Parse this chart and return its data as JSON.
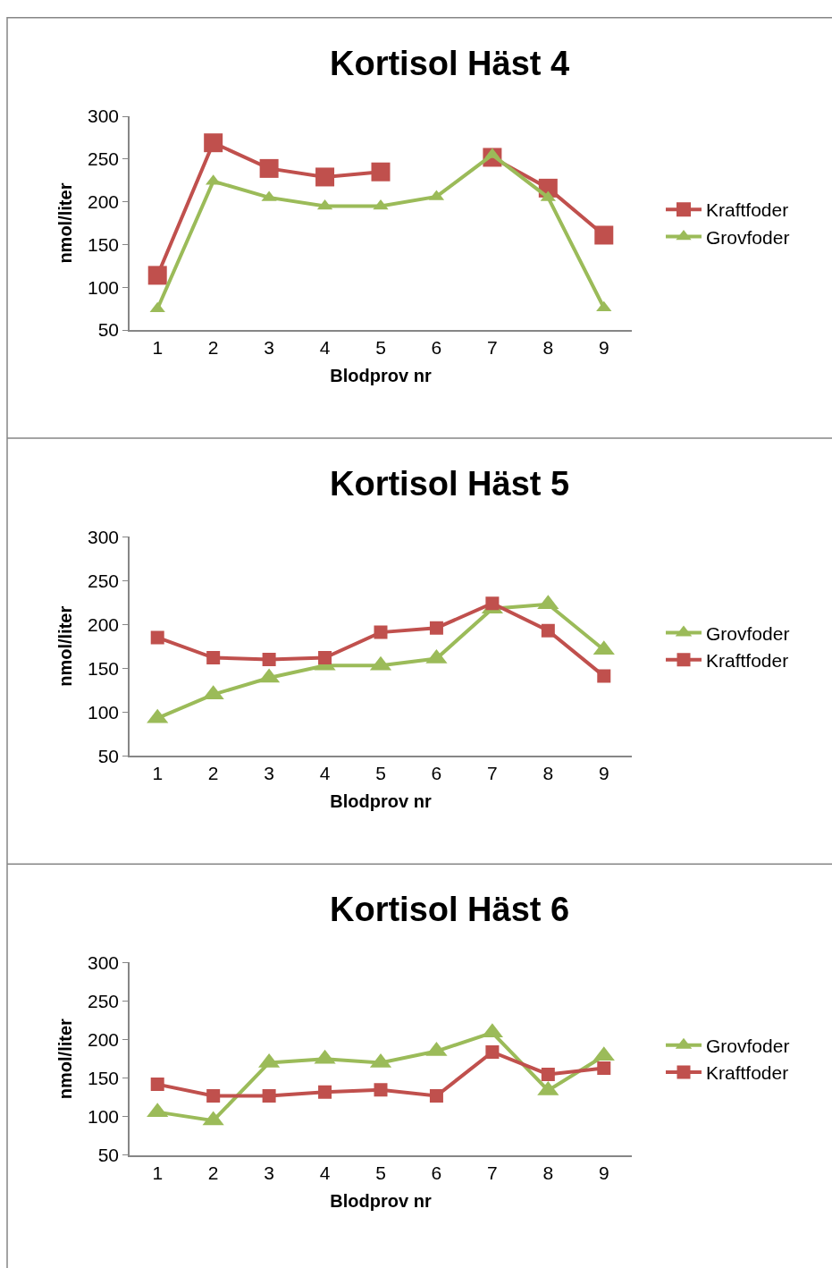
{
  "chart_data": [
    {
      "type": "line",
      "title": "Kortisol Häst 4",
      "xlabel": "Blodprov nr",
      "ylabel": "nmol/liter",
      "categories": [
        "1",
        "2",
        "3",
        "4",
        "5",
        "6",
        "7",
        "8",
        "9"
      ],
      "ylim": [
        50,
        300
      ],
      "yticks": [
        50,
        100,
        150,
        200,
        250,
        300
      ],
      "grid": false,
      "legend": "right",
      "series": [
        {
          "name": "Kraftfoder",
          "color": "#c0504d",
          "marker": "square",
          "values": [
            114,
            269,
            239,
            229,
            235,
            null,
            252,
            216,
            161
          ]
        },
        {
          "name": "Grovfoder",
          "color": "#9bbb59",
          "marker": "triangle",
          "values": [
            75,
            224,
            205,
            195,
            195,
            206,
            255,
            205,
            76
          ]
        }
      ]
    },
    {
      "type": "line",
      "title": "Kortisol Häst 5",
      "xlabel": "Blodprov nr",
      "ylabel": "nmol/liter",
      "categories": [
        "1",
        "2",
        "3",
        "4",
        "5",
        "6",
        "7",
        "8",
        "9"
      ],
      "ylim": [
        50,
        300
      ],
      "yticks": [
        50,
        100,
        150,
        200,
        250,
        300
      ],
      "grid": false,
      "legend": "right",
      "series": [
        {
          "name": "Grovfoder",
          "color": "#9bbb59",
          "marker": "triangle",
          "values": [
            93,
            120,
            139,
            153,
            153,
            161,
            218,
            223,
            171
          ]
        },
        {
          "name": "Kraftfoder",
          "color": "#c0504d",
          "marker": "square",
          "values": [
            185,
            162,
            160,
            162,
            191,
            196,
            224,
            193,
            141
          ]
        }
      ]
    },
    {
      "type": "line",
      "title": "Kortisol Häst 6",
      "xlabel": "Blodprov nr",
      "ylabel": "nmol/liter",
      "categories": [
        "1",
        "2",
        "3",
        "4",
        "5",
        "6",
        "7",
        "8",
        "9"
      ],
      "ylim": [
        50,
        300
      ],
      "yticks": [
        50,
        100,
        150,
        200,
        250,
        300
      ],
      "grid": false,
      "legend": "right",
      "series": [
        {
          "name": "Grovfoder",
          "color": "#9bbb59",
          "marker": "triangle",
          "values": [
            106,
            95,
            170,
            175,
            170,
            185,
            209,
            134,
            179
          ]
        },
        {
          "name": "Kraftfoder",
          "color": "#c0504d",
          "marker": "square",
          "values": [
            142,
            127,
            127,
            132,
            135,
            127,
            184,
            155,
            163
          ]
        }
      ]
    }
  ]
}
